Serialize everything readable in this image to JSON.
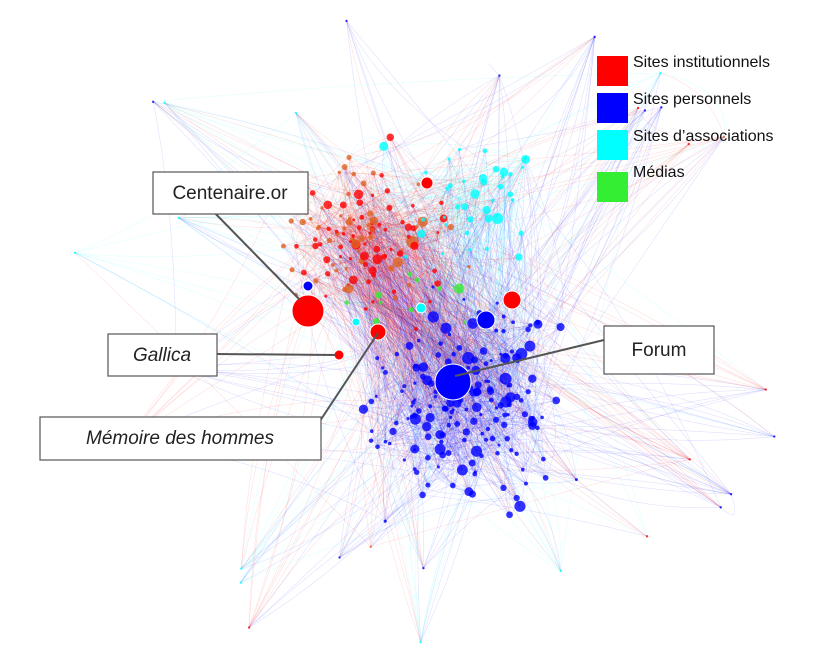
{
  "legend": [
    {
      "label": "Sites institutionnels",
      "color": "#ff0000"
    },
    {
      "label": "Sites personnels",
      "color": "#0000ff"
    },
    {
      "label": "Sites d’associations",
      "color": "#00ffff"
    },
    {
      "label": "Médias",
      "color": "#33ee33"
    }
  ],
  "callouts": [
    {
      "label": "Centenaire.or"
    },
    {
      "label": "Gallica"
    },
    {
      "label": "Mémoire des hommes"
    },
    {
      "label": "Forum"
    }
  ]
}
